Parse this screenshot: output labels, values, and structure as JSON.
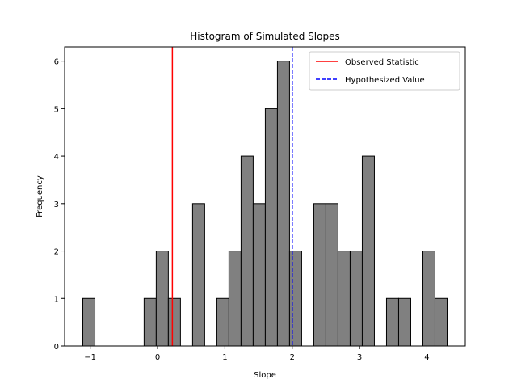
{
  "chart_data": {
    "type": "bar",
    "title": "Histogram of Simulated Slopes",
    "xlabel": "Slope",
    "ylabel": "Frequency",
    "xlim": [
      -1.38,
      4.57
    ],
    "ylim": [
      0,
      6.3
    ],
    "xticks": [
      -1,
      0,
      1,
      2,
      3,
      4
    ],
    "yticks": [
      0,
      1,
      2,
      3,
      4,
      5,
      6
    ],
    "bin_width": 0.18,
    "bins": [
      {
        "left": -1.11,
        "count": 1
      },
      {
        "left": -0.2,
        "count": 1
      },
      {
        "left": -0.02,
        "count": 2
      },
      {
        "left": 0.16,
        "count": 1
      },
      {
        "left": 0.52,
        "count": 3
      },
      {
        "left": 0.88,
        "count": 1
      },
      {
        "left": 1.06,
        "count": 2
      },
      {
        "left": 1.24,
        "count": 4
      },
      {
        "left": 1.42,
        "count": 3
      },
      {
        "left": 1.6,
        "count": 5
      },
      {
        "left": 1.78,
        "count": 6
      },
      {
        "left": 1.96,
        "count": 2
      },
      {
        "left": 2.32,
        "count": 3
      },
      {
        "left": 2.5,
        "count": 3
      },
      {
        "left": 2.68,
        "count": 2
      },
      {
        "left": 2.86,
        "count": 2
      },
      {
        "left": 3.04,
        "count": 4
      },
      {
        "left": 3.4,
        "count": 1
      },
      {
        "left": 3.58,
        "count": 1
      },
      {
        "left": 3.94,
        "count": 2
      },
      {
        "left": 4.12,
        "count": 1
      }
    ],
    "bar_color": "#808080",
    "bar_edge_color": "#000000",
    "vlines": [
      {
        "name": "Observed Statistic",
        "x": 0.22,
        "color": "#ff0000",
        "style": "solid"
      },
      {
        "name": "Hypothesized Value",
        "x": 2.0,
        "color": "#0000ff",
        "style": "dashed"
      }
    ],
    "legend_position": "top-right",
    "grid": false
  }
}
